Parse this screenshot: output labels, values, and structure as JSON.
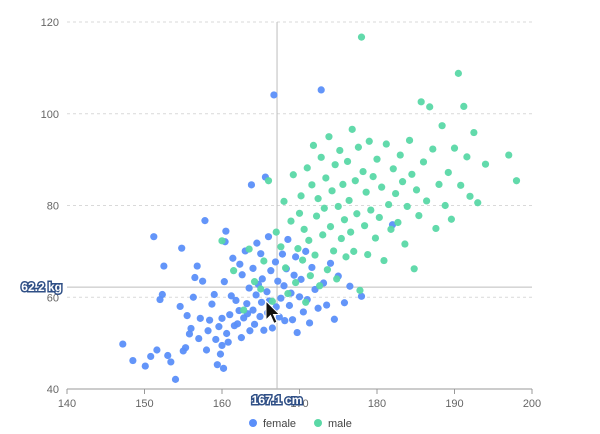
{
  "chart_data": {
    "type": "scatter",
    "title": "",
    "xlabel": "",
    "ylabel": "",
    "xlim": [
      140,
      200
    ],
    "ylim": [
      40,
      120
    ],
    "x_ticks": [
      "140",
      "150",
      "160",
      "170",
      "180",
      "190",
      "200"
    ],
    "y_ticks": [
      "40",
      "60",
      "80",
      "100",
      "120"
    ],
    "grid": "horizontal dashed",
    "legend_position": "bottom",
    "axis_pointer": {
      "x_label": "167.1 cm",
      "y_label": "62.2 kg",
      "x": 167.1,
      "y": 62.2
    },
    "colors": {
      "female": "#5b8ff9",
      "male": "#5ad8a6",
      "grid": "#d9d9d9",
      "axis": "#999999",
      "pointer": "#bdbdbd"
    },
    "series": [
      {
        "name": "female",
        "color": "#5b8ff9",
        "points": [
          [
            147.2,
            49.8
          ],
          [
            148.5,
            46.2
          ],
          [
            150.1,
            45.0
          ],
          [
            150.8,
            47.1
          ],
          [
            151.2,
            73.2
          ],
          [
            151.6,
            48.5
          ],
          [
            152.0,
            59.5
          ],
          [
            152.3,
            60.6
          ],
          [
            152.5,
            66.8
          ],
          [
            153.0,
            47.3
          ],
          [
            153.4,
            45.9
          ],
          [
            154.0,
            42.1
          ],
          [
            154.6,
            58.0
          ],
          [
            154.8,
            70.7
          ],
          [
            155.0,
            48.3
          ],
          [
            155.3,
            49.0
          ],
          [
            155.5,
            56.0
          ],
          [
            155.8,
            52.0
          ],
          [
            156.0,
            53.2
          ],
          [
            156.3,
            60.0
          ],
          [
            156.5,
            64.3
          ],
          [
            156.8,
            66.8
          ],
          [
            157.0,
            51.0
          ],
          [
            157.2,
            55.4
          ],
          [
            157.5,
            63.5
          ],
          [
            157.8,
            76.7
          ],
          [
            158.0,
            48.5
          ],
          [
            158.2,
            52.7
          ],
          [
            158.4,
            55.0
          ],
          [
            158.7,
            58.5
          ],
          [
            159.0,
            60.6
          ],
          [
            159.2,
            50.8
          ],
          [
            159.4,
            45.3
          ],
          [
            159.6,
            53.6
          ],
          [
            159.8,
            47.6
          ],
          [
            160.0,
            55.4
          ],
          [
            160.0,
            49.5
          ],
          [
            160.2,
            44.5
          ],
          [
            160.3,
            63.4
          ],
          [
            160.4,
            72.1
          ],
          [
            160.5,
            74.4
          ],
          [
            160.6,
            52.1
          ],
          [
            160.8,
            50.2
          ],
          [
            161.0,
            56.2
          ],
          [
            161.2,
            60.3
          ],
          [
            161.4,
            68.5
          ],
          [
            161.6,
            53.8
          ],
          [
            161.8,
            59.3
          ],
          [
            162.0,
            54.2
          ],
          [
            162.2,
            57.1
          ],
          [
            162.3,
            67.2
          ],
          [
            162.5,
            51.2
          ],
          [
            162.6,
            64.9
          ],
          [
            162.8,
            55.5
          ],
          [
            163.0,
            70.1
          ],
          [
            163.2,
            58.6
          ],
          [
            163.3,
            56.4
          ],
          [
            163.5,
            62.0
          ],
          [
            163.6,
            52.7
          ],
          [
            163.8,
            84.5
          ],
          [
            164.0,
            66.3
          ],
          [
            164.0,
            57.2
          ],
          [
            164.2,
            54.1
          ],
          [
            164.4,
            60.5
          ],
          [
            164.5,
            71.8
          ],
          [
            164.7,
            62.8
          ],
          [
            164.9,
            55.8
          ],
          [
            165.0,
            69.5
          ],
          [
            165.1,
            58.9
          ],
          [
            165.2,
            64.0
          ],
          [
            165.4,
            52.8
          ],
          [
            165.6,
            86.2
          ],
          [
            165.8,
            61.2
          ],
          [
            165.9,
            56.6
          ],
          [
            166.0,
            73.2
          ],
          [
            166.1,
            59.2
          ],
          [
            166.3,
            65.8
          ],
          [
            166.5,
            53.3
          ],
          [
            166.7,
            104.1
          ],
          [
            166.9,
            67.7
          ],
          [
            167.0,
            57.9
          ],
          [
            167.2,
            63.5
          ],
          [
            167.4,
            55.7
          ],
          [
            167.6,
            59.8
          ],
          [
            167.8,
            69.4
          ],
          [
            168.0,
            62.5
          ],
          [
            168.1,
            54.9
          ],
          [
            168.3,
            66.2
          ],
          [
            168.5,
            72.6
          ],
          [
            168.7,
            58.2
          ],
          [
            168.9,
            60.9
          ],
          [
            169.1,
            55.1
          ],
          [
            169.3,
            64.8
          ],
          [
            169.5,
            68.8
          ],
          [
            169.7,
            52.3
          ],
          [
            170.0,
            60.1
          ],
          [
            170.2,
            63.9
          ],
          [
            170.5,
            56.8
          ],
          [
            170.8,
            70.0
          ],
          [
            171.0,
            59.5
          ],
          [
            171.3,
            54.4
          ],
          [
            171.6,
            66.5
          ],
          [
            172.0,
            61.7
          ],
          [
            172.4,
            57.6
          ],
          [
            172.8,
            105.2
          ],
          [
            173.1,
            63.1
          ],
          [
            173.5,
            58.3
          ],
          [
            174.0,
            67.4
          ],
          [
            174.5,
            55.2
          ],
          [
            175.0,
            64.6
          ],
          [
            175.8,
            58.8
          ],
          [
            176.5,
            62.4
          ],
          [
            178.0,
            60.2
          ],
          [
            182.0,
            75.8
          ]
        ]
      },
      {
        "name": "male",
        "color": "#5ad8a6",
        "points": [
          [
            160.0,
            72.3
          ],
          [
            161.5,
            65.8
          ],
          [
            162.8,
            57.2
          ],
          [
            163.5,
            70.5
          ],
          [
            164.2,
            63.4
          ],
          [
            165.0,
            61.8
          ],
          [
            165.4,
            67.9
          ],
          [
            166.0,
            85.4
          ],
          [
            166.5,
            59.1
          ],
          [
            167.0,
            74.2
          ],
          [
            167.6,
            71.0
          ],
          [
            168.0,
            80.9
          ],
          [
            168.2,
            66.4
          ],
          [
            168.5,
            60.8
          ],
          [
            168.9,
            76.6
          ],
          [
            169.2,
            86.7
          ],
          [
            169.5,
            63.2
          ],
          [
            169.8,
            70.6
          ],
          [
            170.0,
            78.3
          ],
          [
            170.2,
            82.1
          ],
          [
            170.4,
            68.1
          ],
          [
            170.6,
            74.8
          ],
          [
            170.8,
            58.9
          ],
          [
            171.0,
            88.2
          ],
          [
            171.2,
            72.4
          ],
          [
            171.4,
            64.7
          ],
          [
            171.6,
            84.5
          ],
          [
            171.8,
            93.1
          ],
          [
            172.0,
            69.2
          ],
          [
            172.2,
            77.7
          ],
          [
            172.4,
            81.5
          ],
          [
            172.6,
            62.5
          ],
          [
            172.8,
            90.5
          ],
          [
            173.0,
            73.6
          ],
          [
            173.2,
            79.4
          ],
          [
            173.4,
            86.0
          ],
          [
            173.6,
            66.0
          ],
          [
            173.8,
            95.0
          ],
          [
            174.0,
            75.4
          ],
          [
            174.2,
            83.2
          ],
          [
            174.4,
            70.1
          ],
          [
            174.6,
            88.9
          ],
          [
            174.8,
            64.0
          ],
          [
            175.0,
            79.8
          ],
          [
            175.2,
            92.0
          ],
          [
            175.4,
            72.8
          ],
          [
            175.6,
            84.6
          ],
          [
            175.8,
            76.9
          ],
          [
            176.0,
            68.8
          ],
          [
            176.2,
            89.6
          ],
          [
            176.4,
            81.1
          ],
          [
            176.6,
            74.2
          ],
          [
            176.8,
            96.6
          ],
          [
            177.0,
            70.0
          ],
          [
            177.2,
            85.4
          ],
          [
            177.4,
            78.2
          ],
          [
            177.6,
            92.7
          ],
          [
            177.8,
            61.5
          ],
          [
            178.0,
            116.7
          ],
          [
            178.2,
            87.4
          ],
          [
            178.4,
            75.6
          ],
          [
            178.6,
            82.9
          ],
          [
            178.8,
            69.3
          ],
          [
            179.0,
            94.0
          ],
          [
            179.2,
            79.0
          ],
          [
            179.5,
            86.3
          ],
          [
            179.8,
            72.9
          ],
          [
            180.0,
            90.1
          ],
          [
            180.3,
            77.4
          ],
          [
            180.6,
            84.0
          ],
          [
            180.9,
            68.0
          ],
          [
            181.2,
            93.4
          ],
          [
            181.5,
            80.2
          ],
          [
            181.8,
            74.8
          ],
          [
            182.1,
            88.0
          ],
          [
            182.4,
            82.6
          ],
          [
            182.7,
            76.3
          ],
          [
            183.0,
            91.0
          ],
          [
            183.3,
            85.2
          ],
          [
            183.6,
            71.6
          ],
          [
            183.9,
            79.8
          ],
          [
            184.2,
            94.2
          ],
          [
            184.5,
            86.8
          ],
          [
            184.8,
            66.2
          ],
          [
            185.1,
            83.4
          ],
          [
            185.4,
            77.8
          ],
          [
            185.7,
            102.6
          ],
          [
            186.0,
            89.5
          ],
          [
            186.4,
            81.0
          ],
          [
            186.8,
            101.5
          ],
          [
            187.2,
            92.3
          ],
          [
            187.6,
            75.0
          ],
          [
            188.0,
            84.6
          ],
          [
            188.4,
            97.4
          ],
          [
            188.8,
            80.0
          ],
          [
            189.2,
            87.2
          ],
          [
            189.6,
            77.0
          ],
          [
            190.0,
            92.5
          ],
          [
            190.5,
            108.8
          ],
          [
            190.8,
            84.4
          ],
          [
            191.2,
            101.6
          ],
          [
            191.6,
            90.6
          ],
          [
            192.0,
            82.0
          ],
          [
            192.5,
            95.9
          ],
          [
            193.0,
            80.6
          ],
          [
            194.0,
            89.0
          ],
          [
            197.0,
            91.0
          ],
          [
            198.0,
            85.4
          ]
        ]
      }
    ]
  }
}
